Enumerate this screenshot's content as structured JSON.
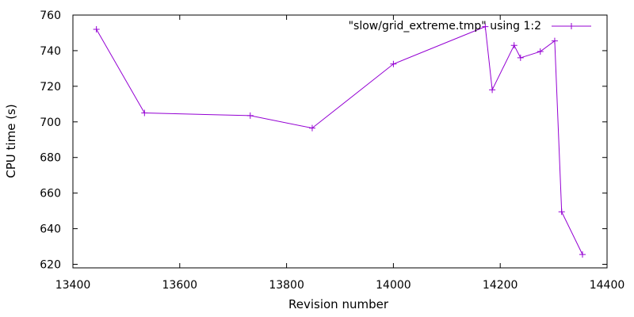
{
  "chart_data": {
    "type": "line",
    "title": "",
    "xlabel": "Revision number",
    "ylabel": "CPU time (s)",
    "xlim": [
      13400,
      14400
    ],
    "ylim": [
      618,
      760
    ],
    "xticks": [
      13400,
      13600,
      13800,
      14000,
      14200,
      14400
    ],
    "yticks": [
      620,
      640,
      660,
      680,
      700,
      720,
      740,
      760
    ],
    "grid": false,
    "legend_position": "top-right",
    "series": [
      {
        "name": "\"slow/grid_extreme.tmp\" using 1:2",
        "color": "#9400d3",
        "marker": "plus",
        "x": [
          13444,
          13534,
          13732,
          13848,
          14000,
          14172,
          14185,
          14226,
          14238,
          14275,
          14302,
          14315,
          14354
        ],
        "y": [
          752,
          705,
          703.5,
          696.5,
          732.5,
          753.5,
          718,
          743,
          736,
          739.5,
          745.5,
          649.5,
          625.5
        ]
      }
    ]
  }
}
